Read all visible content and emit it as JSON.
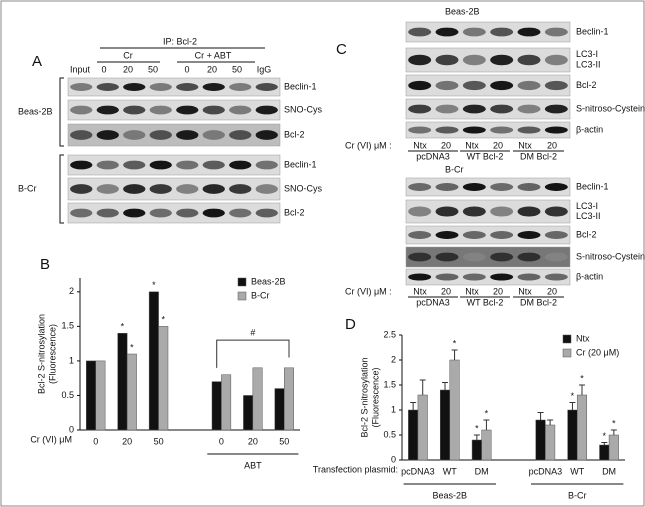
{
  "panel_a": {
    "letter": "A",
    "ip_label": "IP: Bcl-2",
    "groups": [
      "Cr",
      "Cr + ABT"
    ],
    "lanes": [
      "Input",
      "0",
      "20",
      "50",
      "0",
      "20",
      "50",
      "IgG"
    ],
    "sections": [
      {
        "cell_line": "Beas-2B",
        "blots": [
          "Beclin-1",
          "SNO-Cys",
          "Bcl-2"
        ]
      },
      {
        "cell_line": "B-Cr",
        "blots": [
          "Beclin-1",
          "SNO-Cys",
          "Bcl-2"
        ]
      }
    ]
  },
  "panel_c": {
    "letter": "C",
    "lane_axis_label": "Cr (VI) μM :",
    "lanes": [
      "Ntx",
      "20",
      "Ntx",
      "20",
      "Ntx",
      "20"
    ],
    "groups": [
      "pcDNA3",
      "WT Bcl-2",
      "DM Bcl-2"
    ],
    "sections": [
      {
        "cell_line": "Beas-2B",
        "blots": [
          [
            "Beclin-1"
          ],
          [
            "LC3-I",
            "LC3-II"
          ],
          [
            "Bcl-2"
          ],
          [
            "S-nitroso-Cysteine"
          ],
          [
            "β-actin"
          ]
        ]
      },
      {
        "cell_line": "B-Cr",
        "blots": [
          [
            "Beclin-1"
          ],
          [
            "LC3-I",
            "LC3-II"
          ],
          [
            "Bcl-2"
          ],
          [
            "S-nitroso-Cysteine"
          ],
          [
            "β-actin"
          ]
        ]
      }
    ]
  },
  "chart_data": [
    {
      "type": "bar",
      "title": "B",
      "y_label": [
        "Bcl-2 S-nitrosylation",
        "(Fluorescence)"
      ],
      "x_label": "Cr (VI) μM",
      "categories": [
        "0",
        "20",
        "50",
        "0",
        "20",
        "50"
      ],
      "group_labels": [
        "ABT"
      ],
      "series": [
        {
          "name": "Beas-2B",
          "color": "#111111",
          "values": [
            1.0,
            1.4,
            2.0,
            0.7,
            0.5,
            0.6
          ]
        },
        {
          "name": "B-Cr",
          "color": "#aaaaaa",
          "values": [
            1.0,
            1.1,
            1.5,
            0.8,
            0.9,
            0.9
          ]
        }
      ],
      "ylim": [
        0,
        2.2
      ],
      "yticks": [
        0,
        0.5,
        1,
        1.5,
        2
      ],
      "legend": "upper-right",
      "annotations": [
        "*",
        "*",
        "*",
        "*",
        "#"
      ]
    },
    {
      "type": "bar",
      "title": "D",
      "y_label": [
        "Bcl-2 S-nitrosylation",
        "(Fluorescence)"
      ],
      "x_label": "Transfection plasmid:",
      "categories": [
        "pcDNA3",
        "WT",
        "DM",
        "pcDNA3",
        "WT",
        "DM"
      ],
      "group_labels": [
        "Beas-2B",
        "B-Cr"
      ],
      "series": [
        {
          "name": "Ntx",
          "color": "#111111",
          "values": [
            1.0,
            1.4,
            0.4,
            0.8,
            1.0,
            0.3
          ],
          "errors": [
            0.15,
            0.15,
            0.1,
            0.15,
            0.15,
            0.05
          ]
        },
        {
          "name": "Cr (20 μM)",
          "color": "#aaaaaa",
          "values": [
            1.3,
            2.0,
            0.6,
            0.7,
            1.3,
            0.5
          ],
          "errors": [
            0.3,
            0.2,
            0.2,
            0.1,
            0.2,
            0.1
          ]
        }
      ],
      "ylim": [
        0,
        2.5
      ],
      "yticks": [
        0,
        0.5,
        1,
        1.5,
        2,
        2.5
      ],
      "legend": "upper-right",
      "annotations": [
        "*",
        "*",
        "*",
        "*",
        "*",
        "*",
        "*"
      ]
    }
  ]
}
